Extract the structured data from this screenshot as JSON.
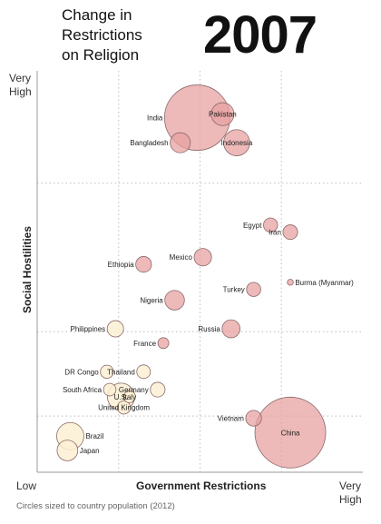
{
  "header": {
    "title": "Change in\nRestrictions\non Religion",
    "year": "2007"
  },
  "axes": {
    "y_high": "Very\nHigh",
    "x_low": "Low",
    "x_high": "Very\nHigh",
    "x_title": "Government Restrictions",
    "y_title": "Social Hostilities"
  },
  "footnote": "Circles sized to country population (2012)",
  "chart_data": {
    "type": "scatter",
    "title": "Change in Restrictions on Religion",
    "subtitle": "2007",
    "xlabel": "Government Restrictions",
    "ylabel": "Social Hostilities",
    "xlim": [
      0,
      10
    ],
    "ylim": [
      0,
      10
    ],
    "x_ticks": [
      "Low",
      "Very High"
    ],
    "y_ticks": [
      "Very High"
    ],
    "size_note": "Circles sized to country population (2012)",
    "colors": {
      "high_fill": "#e8a2a2",
      "low_fill": "#fbf0d4",
      "stroke": "#8a6a6a"
    },
    "points": [
      {
        "label": "India",
        "x": 4.9,
        "y": 9.3,
        "r": 1.2,
        "label_pos": "left"
      },
      {
        "label": "Pakistan",
        "x": 5.8,
        "y": 9.4,
        "r": 0.42,
        "label_pos": "center"
      },
      {
        "label": "Bangladesh",
        "x": 4.3,
        "y": 8.6,
        "r": 0.37,
        "label_pos": "left"
      },
      {
        "label": "Indonesia",
        "x": 6.3,
        "y": 8.6,
        "r": 0.48,
        "label_pos": "center"
      },
      {
        "label": "Egypt",
        "x": 7.5,
        "y": 6.3,
        "r": 0.26,
        "label_pos": "left"
      },
      {
        "label": "Iran",
        "x": 8.2,
        "y": 6.1,
        "r": 0.27,
        "label_pos": "left"
      },
      {
        "label": "Mexico",
        "x": 5.1,
        "y": 5.4,
        "r": 0.32,
        "label_pos": "left"
      },
      {
        "label": "Ethiopia",
        "x": 3.0,
        "y": 5.2,
        "r": 0.29,
        "label_pos": "left"
      },
      {
        "label": "Burma (Myanmar)",
        "x": 8.2,
        "y": 4.7,
        "r": 0.11,
        "label_pos": "right"
      },
      {
        "label": "Turkey",
        "x": 6.9,
        "y": 4.5,
        "r": 0.26,
        "label_pos": "left"
      },
      {
        "label": "Nigeria",
        "x": 4.1,
        "y": 4.2,
        "r": 0.36,
        "label_pos": "left"
      },
      {
        "label": "Philippines",
        "x": 2.0,
        "y": 3.4,
        "r": 0.3,
        "label_pos": "left"
      },
      {
        "label": "Russia",
        "x": 6.1,
        "y": 3.4,
        "r": 0.33,
        "label_pos": "left"
      },
      {
        "label": "France",
        "x": 3.7,
        "y": 3.0,
        "r": 0.2,
        "label_pos": "left"
      },
      {
        "label": "DR Congo",
        "x": 1.7,
        "y": 2.2,
        "r": 0.24,
        "label_pos": "left"
      },
      {
        "label": "Thailand",
        "x": 3.0,
        "y": 2.2,
        "r": 0.25,
        "label_pos": "left"
      },
      {
        "label": "South Africa",
        "x": 1.8,
        "y": 1.7,
        "r": 0.23,
        "label_pos": "left"
      },
      {
        "label": "Germany",
        "x": 3.5,
        "y": 1.7,
        "r": 0.27,
        "label_pos": "left"
      },
      {
        "label": "U.S.",
        "x": 2.2,
        "y": 1.5,
        "r": 0.5,
        "label_pos": "center"
      },
      {
        "label": "Italy",
        "x": 2.5,
        "y": 1.5,
        "r": 0.22,
        "label_pos": "center"
      },
      {
        "label": "United Kingdom",
        "x": 2.3,
        "y": 1.2,
        "r": 0.24,
        "label_pos": "center"
      },
      {
        "label": "Vietnam",
        "x": 6.9,
        "y": 0.9,
        "r": 0.29,
        "label_pos": "left"
      },
      {
        "label": "China",
        "x": 8.2,
        "y": 0.5,
        "r": 1.3,
        "label_pos": "center"
      },
      {
        "label": "Brazil",
        "x": 0.4,
        "y": 0.4,
        "r": 0.5,
        "label_pos": "right"
      },
      {
        "label": "Japan",
        "x": 0.3,
        "y": 0.0,
        "r": 0.38,
        "label_pos": "right"
      }
    ]
  }
}
